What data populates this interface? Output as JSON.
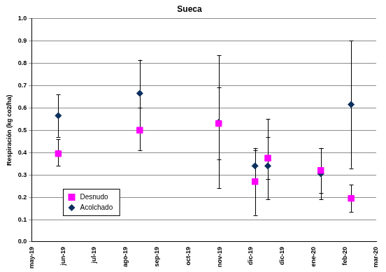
{
  "chart_data": {
    "type": "scatter",
    "title": "Sueca",
    "y_label": "Respiración (kg co2/ha)",
    "xlim": [
      0,
      11
    ],
    "xticks": [
      {
        "value": 0,
        "label": "may-19"
      },
      {
        "value": 1,
        "label": "jun-19"
      },
      {
        "value": 2,
        "label": "jul-19"
      },
      {
        "value": 3,
        "label": "ago-19"
      },
      {
        "value": 4,
        "label": "sep-19"
      },
      {
        "value": 5,
        "label": "oct-19"
      },
      {
        "value": 6,
        "label": "nov-19"
      },
      {
        "value": 7,
        "label": "dic-19"
      },
      {
        "value": 8,
        "label": "dic-19"
      },
      {
        "value": 9,
        "label": "ene-20"
      },
      {
        "value": 10,
        "label": "feb-20"
      },
      {
        "value": 11,
        "label": "mar-20"
      }
    ],
    "ylim": [
      0,
      1
    ],
    "yticks": [
      {
        "value": 0,
        "label": "0.0"
      },
      {
        "value": 0.1,
        "label": "0.1"
      },
      {
        "value": 0.2,
        "label": "0.2"
      },
      {
        "value": 0.3,
        "label": "0.3"
      },
      {
        "value": 0.4,
        "label": "0.4"
      },
      {
        "value": 0.5,
        "label": "0.5"
      },
      {
        "value": 0.6,
        "label": "0.6"
      },
      {
        "value": 0.7,
        "label": "0.7"
      },
      {
        "value": 0.8,
        "label": "0.8"
      },
      {
        "value": 0.9,
        "label": "0.9"
      },
      {
        "value": 1,
        "label": "1.0"
      }
    ],
    "grid": true,
    "legend": "lower left",
    "x": [
      0.85,
      3.45,
      5.97,
      7.13,
      7.54,
      9.23,
      10.2
    ],
    "series": [
      {
        "name": "Desnudo",
        "color": "#ff00ff",
        "marker": "square",
        "values": [
          0.395,
          0.5,
          0.53,
          0.27,
          0.375,
          0.32,
          0.195
        ],
        "error_low": [
          0.34,
          0.41,
          0.37,
          0.12,
          0.28,
          0.19,
          0.135
        ],
        "error_high": [
          0.46,
          0.6,
          0.69,
          0.41,
          0.47,
          0.42,
          0.255
        ]
      },
      {
        "name": "Acolchado",
        "color": "#0b2f5e",
        "marker": "diamond",
        "values": [
          0.565,
          0.665,
          0.535,
          0.34,
          0.34,
          0.305,
          0.615
        ],
        "error_low": [
          0.47,
          0.6,
          0.24,
          0.27,
          0.19,
          0.22,
          0.33
        ],
        "error_high": [
          0.66,
          0.815,
          0.835,
          0.42,
          0.55,
          0.42,
          0.9
        ]
      }
    ]
  }
}
